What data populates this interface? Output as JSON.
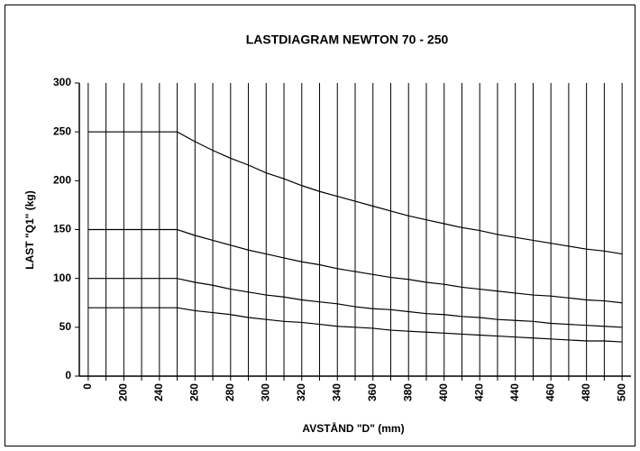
{
  "chart_data": {
    "type": "line",
    "title": "LASTDIAGRAM NEWTON 70  - 250",
    "x_label": "AVSTÅND  \"D\" (mm)",
    "y_label": "LAST \"Q1\" (kg)",
    "categories": [
      "0",
      null,
      "200",
      null,
      "240",
      null,
      "260",
      null,
      "280",
      null,
      "300",
      null,
      "320",
      null,
      "340",
      null,
      "360",
      null,
      "380",
      null,
      "400",
      null,
      "420",
      null,
      "440",
      null,
      "460",
      null,
      "480",
      null,
      "500"
    ],
    "series": [
      {
        "color": "#000000",
        "values": [
          250,
          250,
          250,
          250,
          250,
          250,
          240,
          231,
          223,
          216,
          208,
          202,
          195,
          189,
          184,
          179,
          174,
          169,
          164,
          160,
          156,
          152,
          149,
          145,
          142,
          139,
          136,
          133,
          130,
          128,
          125
        ]
      },
      {
        "color": "#000000",
        "values": [
          150,
          150,
          150,
          150,
          150,
          150,
          144,
          139,
          134,
          129,
          125,
          121,
          117,
          114,
          110,
          107,
          104,
          101,
          99,
          96,
          94,
          91,
          89,
          87,
          85,
          83,
          82,
          80,
          78,
          77,
          75
        ]
      },
      {
        "color": "#000000",
        "values": [
          100,
          100,
          100,
          100,
          100,
          100,
          96,
          93,
          89,
          86,
          83,
          81,
          78,
          76,
          74,
          71,
          69,
          68,
          66,
          64,
          63,
          61,
          60,
          58,
          57,
          56,
          54,
          53,
          52,
          51,
          50
        ]
      },
      {
        "color": "#000000",
        "values": [
          70,
          70,
          70,
          70,
          70,
          70,
          67,
          65,
          63,
          60,
          58,
          56,
          55,
          53,
          51,
          50,
          49,
          47,
          46,
          45,
          44,
          43,
          42,
          41,
          40,
          39,
          38,
          37,
          36,
          36,
          35
        ]
      }
    ],
    "ylim": [
      0,
      300
    ],
    "yticks": [
      0,
      50,
      100,
      150,
      200,
      250,
      300
    ],
    "grid": "x"
  }
}
